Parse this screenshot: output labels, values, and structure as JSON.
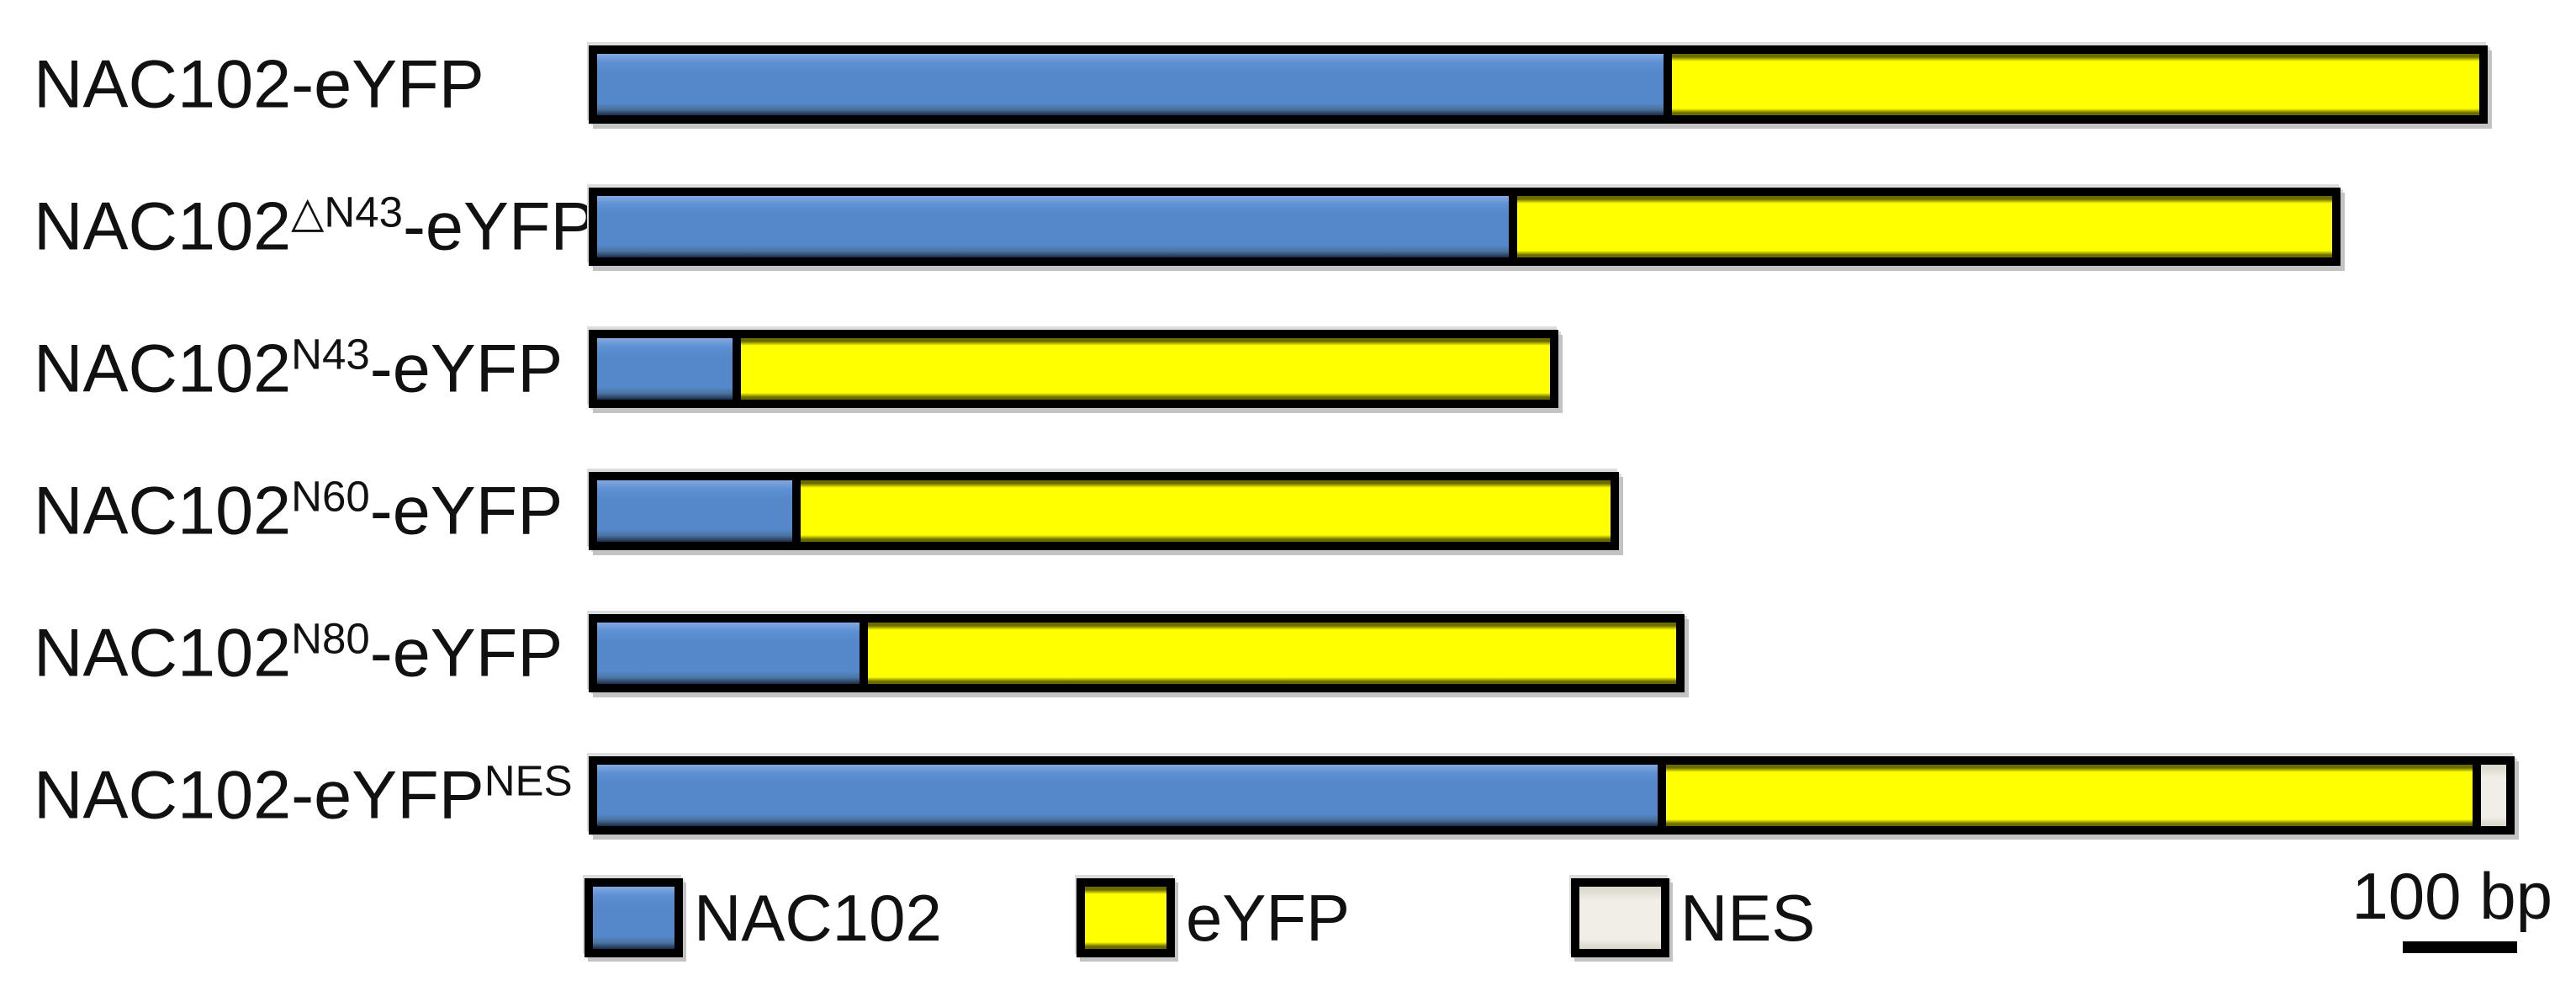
{
  "figure": {
    "description": "Schematic diagram of NAC102-eYFP fusion constructs drawn to scale; segment lengths given in source-image pixels (136 px = 100 bp per scale bar).",
    "colors": {
      "nac102": "#5588cb",
      "eyfp": "#ffff00",
      "nes": "#f0eee6",
      "border": "#000000",
      "shadow": "#c3c3c3"
    },
    "rows": [
      {
        "name": "NAC102-eYFP",
        "label_parts": [
          {
            "text": "NAC102-eYFP"
          }
        ],
        "segments": [
          {
            "key": "nac102",
            "px": 1268
          },
          {
            "key": "eyfp",
            "px": 960
          }
        ]
      },
      {
        "name": "NAC102-dN43-eYFP",
        "label_parts": [
          {
            "text": "NAC102"
          },
          {
            "text": "△N43",
            "sup": true
          },
          {
            "text": "-eYFP"
          }
        ],
        "segments": [
          {
            "key": "nac102",
            "px": 1084
          },
          {
            "key": "eyfp",
            "px": 969
          }
        ]
      },
      {
        "name": "NAC102-N43-eYFP",
        "label_parts": [
          {
            "text": "NAC102"
          },
          {
            "text": "N43",
            "sup": true
          },
          {
            "text": "-eYFP"
          }
        ],
        "segments": [
          {
            "key": "nac102",
            "px": 161
          },
          {
            "key": "eyfp",
            "px": 962
          }
        ]
      },
      {
        "name": "NAC102-N60-eYFP",
        "label_parts": [
          {
            "text": "NAC102"
          },
          {
            "text": "N60",
            "sup": true
          },
          {
            "text": "-eYFP"
          }
        ],
        "segments": [
          {
            "key": "nac102",
            "px": 232
          },
          {
            "key": "eyfp",
            "px": 963
          }
        ]
      },
      {
        "name": "NAC102-N80-eYFP",
        "label_parts": [
          {
            "text": "NAC102"
          },
          {
            "text": "N80",
            "sup": true
          },
          {
            "text": "-eYFP"
          }
        ],
        "segments": [
          {
            "key": "nac102",
            "px": 312
          },
          {
            "key": "eyfp",
            "px": 961
          }
        ]
      },
      {
        "name": "NAC102-eYFP-NES",
        "label_parts": [
          {
            "text": "NAC102-eYFP"
          },
          {
            "text": "NES",
            "sup": true
          }
        ],
        "segments": [
          {
            "key": "nac102",
            "px": 1261
          },
          {
            "key": "eyfp",
            "px": 959
          },
          {
            "key": "nes",
            "px": 30
          }
        ]
      }
    ],
    "legend": {
      "items": [
        {
          "key": "nac102",
          "label": "NAC102"
        },
        {
          "key": "eyfp",
          "label": "eYFP"
        },
        {
          "key": "nes",
          "label": "NES"
        }
      ]
    },
    "scalebar": {
      "label": "100 bp",
      "px": 136,
      "bp": 100
    }
  }
}
